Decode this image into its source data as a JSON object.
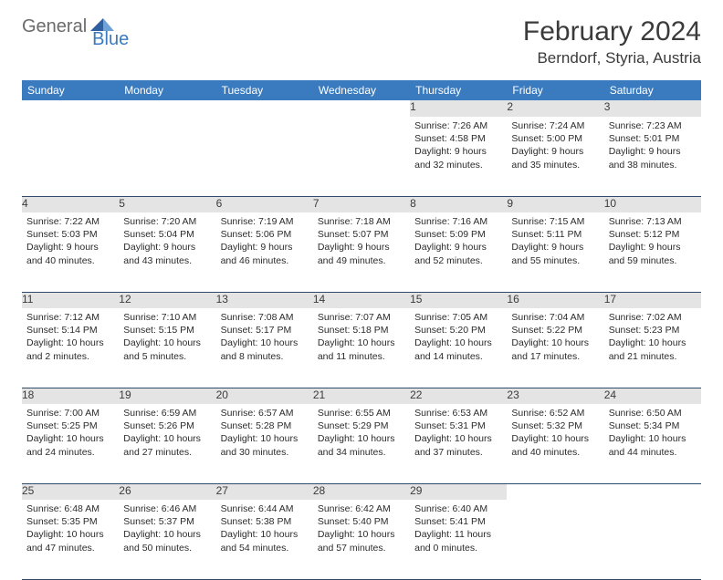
{
  "logo": {
    "text1": "General",
    "text2": "Blue"
  },
  "title": "February 2024",
  "location": "Berndorf, Styria, Austria",
  "colors": {
    "header_bg": "#3a7bbf",
    "header_fg": "#ffffff",
    "daynum_bg": "#e4e4e4",
    "text": "#2b2b2b",
    "border": "#2f4a6a"
  },
  "weekdays": [
    "Sunday",
    "Monday",
    "Tuesday",
    "Wednesday",
    "Thursday",
    "Friday",
    "Saturday"
  ],
  "weeks": [
    [
      null,
      null,
      null,
      null,
      {
        "n": "1",
        "sr": "7:26 AM",
        "ss": "4:58 PM",
        "dl": "9 hours and 32 minutes."
      },
      {
        "n": "2",
        "sr": "7:24 AM",
        "ss": "5:00 PM",
        "dl": "9 hours and 35 minutes."
      },
      {
        "n": "3",
        "sr": "7:23 AM",
        "ss": "5:01 PM",
        "dl": "9 hours and 38 minutes."
      }
    ],
    [
      {
        "n": "4",
        "sr": "7:22 AM",
        "ss": "5:03 PM",
        "dl": "9 hours and 40 minutes."
      },
      {
        "n": "5",
        "sr": "7:20 AM",
        "ss": "5:04 PM",
        "dl": "9 hours and 43 minutes."
      },
      {
        "n": "6",
        "sr": "7:19 AM",
        "ss": "5:06 PM",
        "dl": "9 hours and 46 minutes."
      },
      {
        "n": "7",
        "sr": "7:18 AM",
        "ss": "5:07 PM",
        "dl": "9 hours and 49 minutes."
      },
      {
        "n": "8",
        "sr": "7:16 AM",
        "ss": "5:09 PM",
        "dl": "9 hours and 52 minutes."
      },
      {
        "n": "9",
        "sr": "7:15 AM",
        "ss": "5:11 PM",
        "dl": "9 hours and 55 minutes."
      },
      {
        "n": "10",
        "sr": "7:13 AM",
        "ss": "5:12 PM",
        "dl": "9 hours and 59 minutes."
      }
    ],
    [
      {
        "n": "11",
        "sr": "7:12 AM",
        "ss": "5:14 PM",
        "dl": "10 hours and 2 minutes."
      },
      {
        "n": "12",
        "sr": "7:10 AM",
        "ss": "5:15 PM",
        "dl": "10 hours and 5 minutes."
      },
      {
        "n": "13",
        "sr": "7:08 AM",
        "ss": "5:17 PM",
        "dl": "10 hours and 8 minutes."
      },
      {
        "n": "14",
        "sr": "7:07 AM",
        "ss": "5:18 PM",
        "dl": "10 hours and 11 minutes."
      },
      {
        "n": "15",
        "sr": "7:05 AM",
        "ss": "5:20 PM",
        "dl": "10 hours and 14 minutes."
      },
      {
        "n": "16",
        "sr": "7:04 AM",
        "ss": "5:22 PM",
        "dl": "10 hours and 17 minutes."
      },
      {
        "n": "17",
        "sr": "7:02 AM",
        "ss": "5:23 PM",
        "dl": "10 hours and 21 minutes."
      }
    ],
    [
      {
        "n": "18",
        "sr": "7:00 AM",
        "ss": "5:25 PM",
        "dl": "10 hours and 24 minutes."
      },
      {
        "n": "19",
        "sr": "6:59 AM",
        "ss": "5:26 PM",
        "dl": "10 hours and 27 minutes."
      },
      {
        "n": "20",
        "sr": "6:57 AM",
        "ss": "5:28 PM",
        "dl": "10 hours and 30 minutes."
      },
      {
        "n": "21",
        "sr": "6:55 AM",
        "ss": "5:29 PM",
        "dl": "10 hours and 34 minutes."
      },
      {
        "n": "22",
        "sr": "6:53 AM",
        "ss": "5:31 PM",
        "dl": "10 hours and 37 minutes."
      },
      {
        "n": "23",
        "sr": "6:52 AM",
        "ss": "5:32 PM",
        "dl": "10 hours and 40 minutes."
      },
      {
        "n": "24",
        "sr": "6:50 AM",
        "ss": "5:34 PM",
        "dl": "10 hours and 44 minutes."
      }
    ],
    [
      {
        "n": "25",
        "sr": "6:48 AM",
        "ss": "5:35 PM",
        "dl": "10 hours and 47 minutes."
      },
      {
        "n": "26",
        "sr": "6:46 AM",
        "ss": "5:37 PM",
        "dl": "10 hours and 50 minutes."
      },
      {
        "n": "27",
        "sr": "6:44 AM",
        "ss": "5:38 PM",
        "dl": "10 hours and 54 minutes."
      },
      {
        "n": "28",
        "sr": "6:42 AM",
        "ss": "5:40 PM",
        "dl": "10 hours and 57 minutes."
      },
      {
        "n": "29",
        "sr": "6:40 AM",
        "ss": "5:41 PM",
        "dl": "11 hours and 0 minutes."
      },
      null,
      null
    ]
  ],
  "labels": {
    "sunrise": "Sunrise:",
    "sunset": "Sunset:",
    "daylight": "Daylight:"
  }
}
